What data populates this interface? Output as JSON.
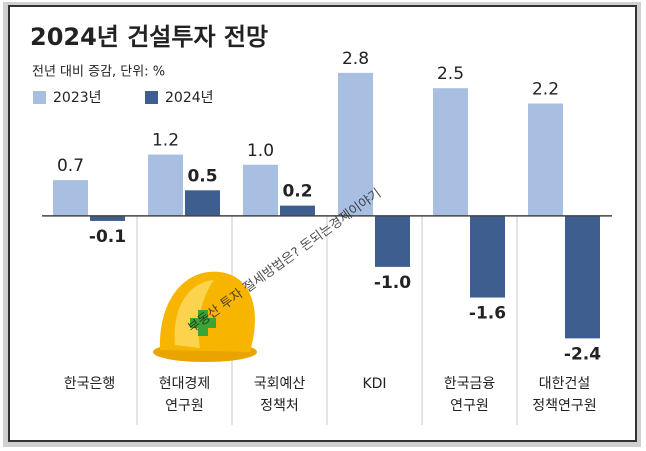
{
  "chart_data": {
    "type": "bar",
    "title": "2024년 건설투자 전망",
    "subtitle": "전년 대비 증감, 단위: %",
    "annotation": "부동산 투자 절세방법은? 돈되는경제이야기",
    "categories": [
      [
        "한국은행"
      ],
      [
        "현대경제",
        "연구원"
      ],
      [
        "국회예산",
        "정책처"
      ],
      [
        "KDI"
      ],
      [
        "한국금융",
        "연구원"
      ],
      [
        "대한건설",
        "정책연구원"
      ]
    ],
    "series": [
      {
        "name": "2023년",
        "color": "#a9bfe1",
        "values": [
          0.7,
          1.2,
          1.0,
          2.8,
          2.5,
          2.2
        ],
        "value_labels": [
          "0.7",
          "1.2",
          "1.0",
          "2.8",
          "2.5",
          "2.2"
        ]
      },
      {
        "name": "2024년",
        "color": "#3d5e8e",
        "values": [
          -0.1,
          0.5,
          0.2,
          -1.0,
          -1.6,
          -2.4
        ],
        "value_labels": [
          "-0.1",
          "0.5",
          "0.2",
          "-1.0",
          "-1.6",
          "-2.4"
        ]
      }
    ],
    "ylim": [
      -3,
      3.15
    ],
    "legend": "top-left"
  }
}
